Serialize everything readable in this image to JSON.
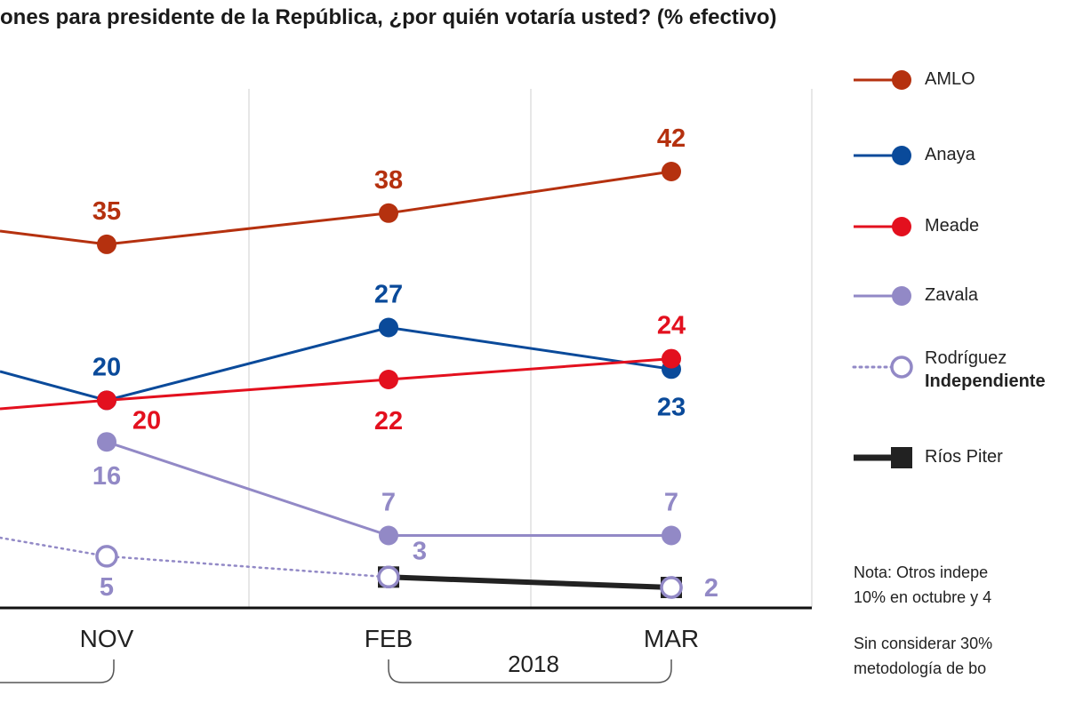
{
  "title": "ones para presidente de la República, ¿por quién votaría usted? (% efectivo)",
  "chart_data": {
    "type": "line",
    "categories": [
      "NOV",
      "FEB",
      "MAR"
    ],
    "year_label": "2018",
    "series": [
      {
        "name": "AMLO",
        "color": "#b5310f",
        "marker": "filled",
        "values": [
          35,
          38,
          42
        ]
      },
      {
        "name": "Anaya",
        "color": "#0a4a9a",
        "marker": "filled",
        "values": [
          20,
          27,
          23
        ]
      },
      {
        "name": "Meade",
        "color": "#e3101e",
        "marker": "filled",
        "values": [
          20,
          22,
          24
        ]
      },
      {
        "name": "Zavala",
        "color": "#9289c6",
        "marker": "filled",
        "values": [
          16,
          7,
          7
        ]
      },
      {
        "name": "Rodríguez",
        "subtitle": "Independiente",
        "color": "#9289c6",
        "marker": "open",
        "style": "dotted",
        "values": [
          5,
          3,
          2
        ]
      },
      {
        "name": "Ríos Piter",
        "color": "#222222",
        "marker": "square",
        "values": [
          null,
          3,
          2
        ]
      }
    ],
    "grid": "vertical"
  },
  "legend": [
    "AMLO",
    "Anaya",
    "Meade",
    "Zavala",
    "Rodríguez",
    "Independiente",
    "Ríos Piter"
  ],
  "notes": [
    "Nota: Otros indepe",
    "10% en octubre y 4",
    "Sin considerar 30%",
    "metodología de bo"
  ]
}
